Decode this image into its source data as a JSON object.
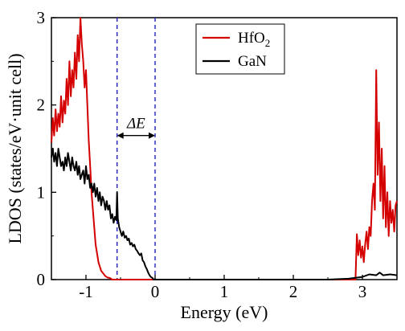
{
  "chart_data": {
    "type": "line",
    "title": "",
    "xlabel": "Energy (eV)",
    "ylabel": "LDOS (states/eV·unit cell)",
    "xlim": [
      -1.5,
      3.5
    ],
    "ylim": [
      0,
      3
    ],
    "xticks": [
      -1,
      0,
      1,
      2,
      3
    ],
    "xtick_labels": [
      "-1",
      "0",
      "1",
      "2",
      "3"
    ],
    "yticks": [
      0,
      1,
      2,
      3
    ],
    "ytick_labels": [
      "0",
      "1",
      "2",
      "3"
    ],
    "legend": {
      "placement": "top-right"
    },
    "grid": false,
    "series": [
      {
        "name": "HfO2",
        "label_main": "HfO",
        "label_sub": "2",
        "color": "#d40000",
        "x": [
          -1.5,
          -1.48,
          -1.46,
          -1.44,
          -1.42,
          -1.4,
          -1.38,
          -1.36,
          -1.34,
          -1.32,
          -1.3,
          -1.28,
          -1.26,
          -1.24,
          -1.22,
          -1.2,
          -1.18,
          -1.16,
          -1.14,
          -1.12,
          -1.1,
          -1.08,
          -1.06,
          -1.04,
          -1.02,
          -1.0,
          -0.98,
          -0.96,
          -0.94,
          -0.92,
          -0.9,
          -0.88,
          -0.86,
          -0.84,
          -0.82,
          -0.8,
          -0.78,
          -0.76,
          -0.74,
          -0.72,
          -0.7,
          -0.68,
          -0.66,
          -0.64,
          -0.62,
          -0.6,
          -0.55,
          -0.5,
          -0.4,
          -0.2,
          0,
          0.5,
          1.0,
          1.5,
          2.0,
          2.5,
          2.8,
          2.9,
          2.92,
          2.94,
          2.96,
          2.98,
          3.0,
          3.02,
          3.04,
          3.06,
          3.08,
          3.1,
          3.12,
          3.14,
          3.16,
          3.18,
          3.2,
          3.22,
          3.24,
          3.26,
          3.28,
          3.3,
          3.32,
          3.34,
          3.36,
          3.38,
          3.4,
          3.42,
          3.44,
          3.46,
          3.48,
          3.5
        ],
        "y": [
          1.57,
          1.85,
          1.65,
          1.95,
          1.7,
          1.9,
          1.75,
          2.1,
          1.8,
          2.05,
          1.9,
          2.3,
          2.0,
          2.5,
          2.1,
          2.4,
          2.2,
          2.6,
          2.3,
          2.8,
          2.5,
          3.0,
          2.7,
          2.5,
          2.2,
          2.4,
          2.0,
          1.6,
          1.3,
          1.0,
          0.8,
          0.6,
          0.4,
          0.3,
          0.2,
          0.15,
          0.1,
          0.08,
          0.06,
          0.04,
          0.03,
          0.02,
          0.02,
          0.01,
          0.0,
          0.0,
          0.0,
          0.0,
          0.0,
          0.0,
          0.0,
          0.0,
          0.0,
          0.0,
          0.0,
          0.0,
          0.0,
          0.0,
          0.52,
          0.28,
          0.45,
          0.25,
          0.38,
          0.2,
          0.4,
          0.55,
          0.35,
          0.6,
          0.5,
          0.9,
          1.1,
          0.8,
          2.4,
          1.2,
          1.8,
          0.9,
          1.5,
          0.7,
          1.3,
          0.6,
          1.0,
          0.5,
          0.9,
          0.65,
          0.8,
          0.55,
          0.85,
          0.9
        ]
      },
      {
        "name": "GaN",
        "color": "#000000",
        "x": [
          -1.5,
          -1.48,
          -1.46,
          -1.44,
          -1.42,
          -1.4,
          -1.38,
          -1.36,
          -1.34,
          -1.32,
          -1.3,
          -1.28,
          -1.26,
          -1.24,
          -1.22,
          -1.2,
          -1.18,
          -1.16,
          -1.14,
          -1.12,
          -1.1,
          -1.08,
          -1.06,
          -1.04,
          -1.02,
          -1.0,
          -0.98,
          -0.96,
          -0.94,
          -0.92,
          -0.9,
          -0.88,
          -0.86,
          -0.84,
          -0.82,
          -0.8,
          -0.78,
          -0.76,
          -0.74,
          -0.72,
          -0.7,
          -0.68,
          -0.66,
          -0.64,
          -0.62,
          -0.6,
          -0.58,
          -0.56,
          -0.55,
          -0.54,
          -0.52,
          -0.5,
          -0.48,
          -0.46,
          -0.44,
          -0.42,
          -0.4,
          -0.38,
          -0.36,
          -0.34,
          -0.32,
          -0.3,
          -0.28,
          -0.26,
          -0.24,
          -0.22,
          -0.2,
          -0.18,
          -0.16,
          -0.14,
          -0.12,
          -0.1,
          -0.08,
          -0.06,
          -0.04,
          -0.02,
          0.0,
          0.5,
          1.0,
          1.5,
          2.0,
          2.5,
          2.8,
          2.9,
          3.0,
          3.1,
          3.2,
          3.25,
          3.3,
          3.4,
          3.5
        ],
        "y": [
          1.4,
          1.5,
          1.35,
          1.45,
          1.3,
          1.5,
          1.4,
          1.3,
          1.35,
          1.25,
          1.4,
          1.3,
          1.45,
          1.35,
          1.25,
          1.4,
          1.3,
          1.25,
          1.35,
          1.2,
          1.3,
          1.15,
          1.2,
          1.25,
          1.1,
          1.3,
          1.15,
          1.2,
          1.05,
          1.1,
          1.0,
          1.1,
          0.95,
          1.05,
          0.9,
          1.0,
          0.85,
          0.95,
          0.9,
          0.8,
          0.9,
          0.8,
          0.85,
          0.7,
          0.75,
          0.65,
          0.72,
          0.68,
          1.0,
          0.7,
          0.6,
          0.55,
          0.5,
          0.55,
          0.48,
          0.5,
          0.45,
          0.47,
          0.4,
          0.42,
          0.38,
          0.4,
          0.35,
          0.33,
          0.3,
          0.28,
          0.3,
          0.22,
          0.2,
          0.15,
          0.12,
          0.08,
          0.05,
          0.03,
          0.02,
          0.0,
          0.0,
          0.0,
          0.0,
          0.0,
          0.0,
          0.0,
          0.01,
          0.02,
          0.03,
          0.06,
          0.05,
          0.08,
          0.05,
          0.06,
          0.05
        ]
      }
    ],
    "annotations": [
      {
        "type": "vline",
        "x": -0.55,
        "color": "#2222bb",
        "style": "dashed"
      },
      {
        "type": "vline",
        "x": 0.0,
        "color": "#2222bb",
        "style": "dashed"
      },
      {
        "type": "double-arrow",
        "x1": -0.55,
        "x2": 0.0,
        "y": 1.65,
        "label": "ΔE"
      }
    ]
  }
}
